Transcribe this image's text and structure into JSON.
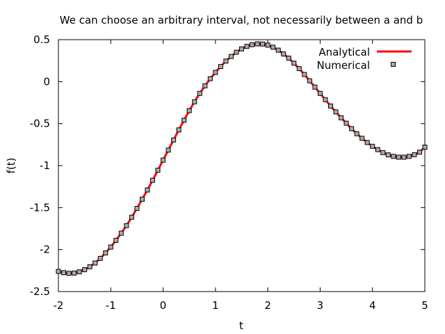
{
  "chart_data": {
    "type": "line",
    "title": "We can choose an arbitrary interval, not necessarily between a and b",
    "xlabel": "t",
    "ylabel": "f(t)",
    "xlim": [
      -2,
      5
    ],
    "ylim": [
      -2.5,
      0.5
    ],
    "xticks": [
      -2,
      -1,
      0,
      1,
      2,
      3,
      4,
      5
    ],
    "xtick_labels": [
      "-2",
      "-1",
      "0",
      "1",
      "2",
      "3",
      "4",
      "5"
    ],
    "yticks": [
      -2.5,
      -2,
      -1.5,
      -1,
      -0.5,
      0,
      0.5
    ],
    "ytick_labels": [
      "-2.5",
      "-2",
      "-1.5",
      "-1",
      "-0.5",
      "0",
      "0.5"
    ],
    "grid": false,
    "legend_position": "top-right",
    "colors": {
      "analytical": "#ff0000",
      "numerical_face": "#aaaaaa",
      "numerical_edge": "#000000",
      "axes": "#000000"
    },
    "series": [
      {
        "name": "Analytical",
        "style": "line",
        "x": [
          -2.0,
          -1.9,
          -1.8,
          -1.7,
          -1.6,
          -1.5,
          -1.4,
          -1.3,
          -1.2,
          -1.1,
          -1.0,
          -0.9,
          -0.8,
          -0.7,
          -0.6,
          -0.5,
          -0.4,
          -0.3,
          -0.2,
          -0.1,
          0.0,
          0.1,
          0.2,
          0.3,
          0.4,
          0.5,
          0.6,
          0.7,
          0.8,
          0.9,
          1.0,
          1.1,
          1.2,
          1.3,
          1.4,
          1.5,
          1.6,
          1.7,
          1.8,
          1.9,
          2.0,
          2.1,
          2.2,
          2.3,
          2.4,
          2.5,
          2.6,
          2.7,
          2.8,
          2.9,
          3.0,
          3.1,
          3.2,
          3.3,
          3.4,
          3.5,
          3.6,
          3.7,
          3.8,
          3.9,
          4.0,
          4.1,
          4.2,
          4.3,
          4.4,
          4.5,
          4.6,
          4.7,
          4.8,
          4.9,
          5.0
        ],
        "y": [
          -2.26,
          -2.275,
          -2.283,
          -2.28,
          -2.265,
          -2.24,
          -2.205,
          -2.16,
          -2.105,
          -2.04,
          -1.97,
          -1.89,
          -1.805,
          -1.715,
          -1.615,
          -1.51,
          -1.4,
          -1.29,
          -1.175,
          -1.055,
          -0.935,
          -0.815,
          -0.695,
          -0.575,
          -0.46,
          -0.345,
          -0.24,
          -0.14,
          -0.05,
          0.035,
          0.11,
          0.18,
          0.245,
          0.3,
          0.35,
          0.39,
          0.42,
          0.44,
          0.45,
          0.448,
          0.435,
          0.41,
          0.375,
          0.33,
          0.28,
          0.22,
          0.155,
          0.085,
          0.01,
          -0.065,
          -0.14,
          -0.215,
          -0.29,
          -0.36,
          -0.43,
          -0.495,
          -0.56,
          -0.62,
          -0.675,
          -0.725,
          -0.77,
          -0.81,
          -0.845,
          -0.872,
          -0.89,
          -0.9,
          -0.9,
          -0.89,
          -0.87,
          -0.84,
          -0.78
        ]
      },
      {
        "name": "Numerical",
        "style": "markers",
        "x": [
          -2.0,
          -1.9,
          -1.8,
          -1.7,
          -1.6,
          -1.5,
          -1.4,
          -1.3,
          -1.2,
          -1.1,
          -1.0,
          -0.9,
          -0.8,
          -0.7,
          -0.6,
          -0.5,
          -0.4,
          -0.3,
          -0.2,
          -0.1,
          0.0,
          0.1,
          0.2,
          0.3,
          0.4,
          0.5,
          0.6,
          0.7,
          0.8,
          0.9,
          1.0,
          1.1,
          1.2,
          1.3,
          1.4,
          1.5,
          1.6,
          1.7,
          1.8,
          1.9,
          2.0,
          2.1,
          2.2,
          2.3,
          2.4,
          2.5,
          2.6,
          2.7,
          2.8,
          2.9,
          3.0,
          3.1,
          3.2,
          3.3,
          3.4,
          3.5,
          3.6,
          3.7,
          3.8,
          3.9,
          4.0,
          4.1,
          4.2,
          4.3,
          4.4,
          4.5,
          4.6,
          4.7,
          4.8,
          4.9,
          5.0
        ],
        "y": [
          -2.26,
          -2.275,
          -2.283,
          -2.28,
          -2.265,
          -2.24,
          -2.205,
          -2.16,
          -2.105,
          -2.04,
          -1.97,
          -1.89,
          -1.805,
          -1.715,
          -1.615,
          -1.51,
          -1.4,
          -1.29,
          -1.175,
          -1.055,
          -0.935,
          -0.815,
          -0.695,
          -0.575,
          -0.46,
          -0.345,
          -0.24,
          -0.14,
          -0.05,
          0.035,
          0.11,
          0.18,
          0.245,
          0.3,
          0.35,
          0.39,
          0.42,
          0.44,
          0.45,
          0.448,
          0.435,
          0.41,
          0.375,
          0.33,
          0.28,
          0.22,
          0.155,
          0.085,
          0.01,
          -0.065,
          -0.14,
          -0.215,
          -0.29,
          -0.36,
          -0.43,
          -0.495,
          -0.56,
          -0.62,
          -0.675,
          -0.725,
          -0.77,
          -0.81,
          -0.845,
          -0.872,
          -0.89,
          -0.9,
          -0.9,
          -0.89,
          -0.87,
          -0.84,
          -0.78
        ]
      }
    ]
  }
}
